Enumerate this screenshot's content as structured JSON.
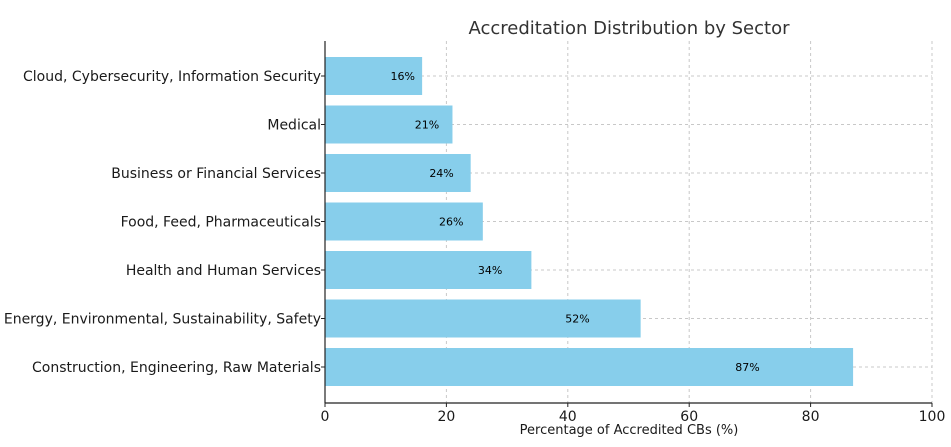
{
  "chart_data": {
    "type": "bar",
    "orientation": "horizontal",
    "title": "Accreditation Distribution by Sector",
    "xlabel": "Percentage of Accredited CBs (%)",
    "ylabel": "",
    "xlim": [
      0,
      100
    ],
    "xticks": [
      0,
      20,
      40,
      60,
      80,
      100
    ],
    "grid": true,
    "categories": [
      "Cloud, Cybersecurity, Information Security",
      "Medical",
      "Business or Financial Services",
      "Food, Feed, Pharmaceuticals",
      "Health and Human Services",
      "Energy, Environmental, Sustainability, Safety",
      "Construction, Engineering, Raw Materials"
    ],
    "values": [
      16,
      21,
      24,
      26,
      34,
      52,
      87
    ],
    "data_labels": [
      "16%",
      "21%",
      "24%",
      "26%",
      "34%",
      "52%",
      "87%"
    ],
    "bar_color": "#87ceeb"
  }
}
